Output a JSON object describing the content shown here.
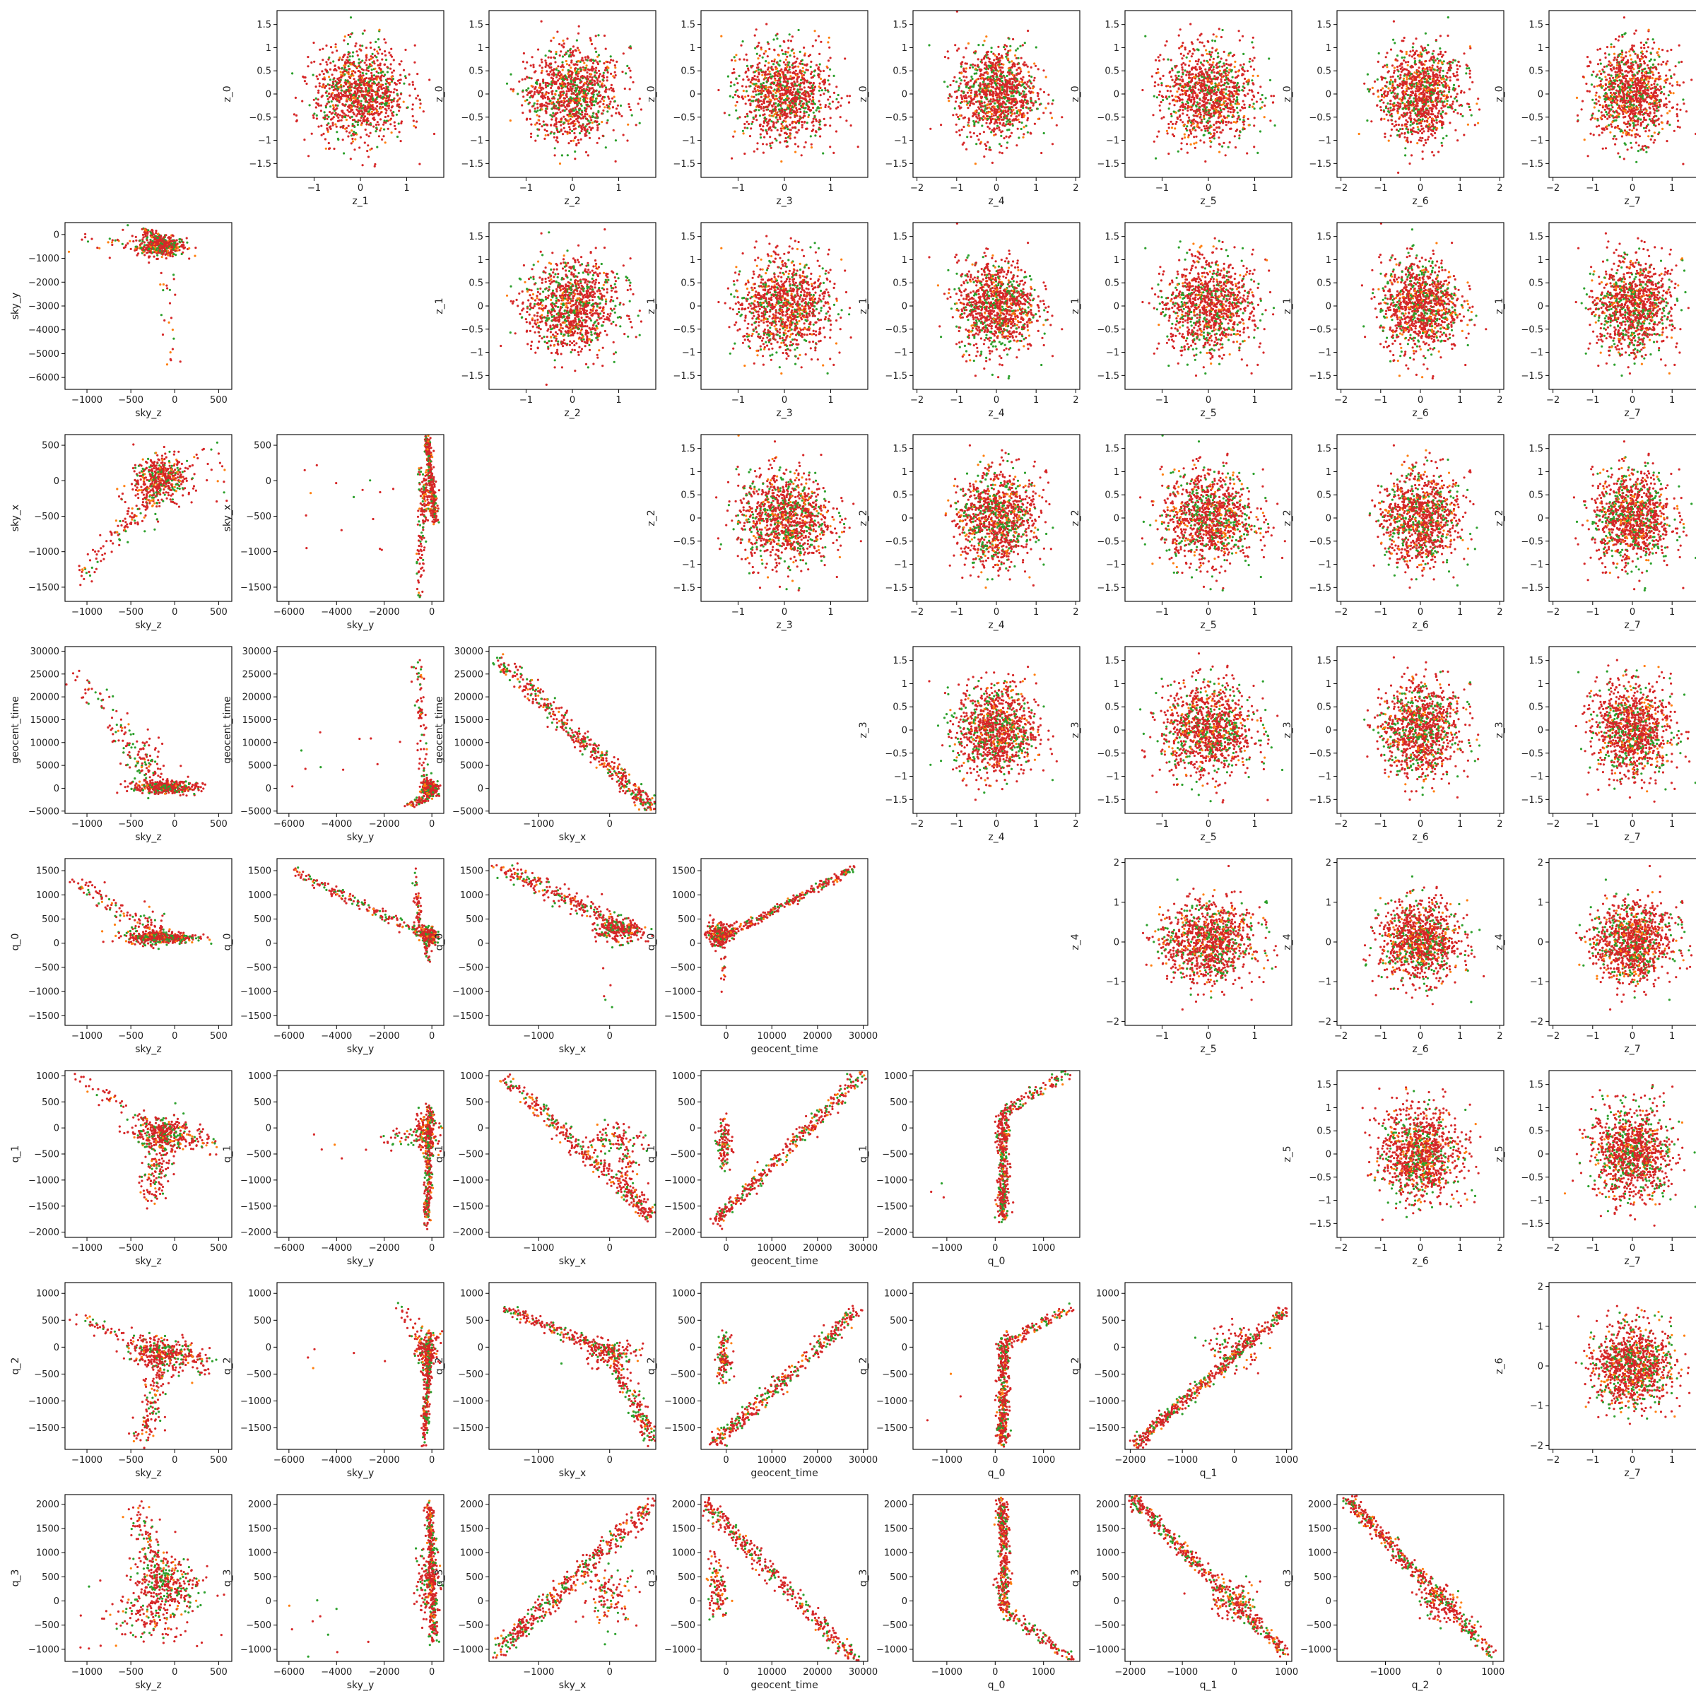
{
  "colors": {
    "primary": "#d62728",
    "secondary": "#2ca02c",
    "tertiary": "#ff7f0e"
  },
  "chart_data": {
    "type": "scatter",
    "grid": false,
    "lower_variables": [
      "sky_z",
      "sky_y",
      "sky_x",
      "geocent_time",
      "q_0",
      "q_1",
      "q_2",
      "q_3"
    ],
    "upper_variables": [
      "z_0",
      "z_1",
      "z_2",
      "z_3",
      "z_4",
      "z_5",
      "z_6",
      "z_7"
    ],
    "ranges": {
      "sky_z": [
        -1250,
        650
      ],
      "sky_y": [
        -6500,
        500
      ],
      "sky_x": [
        -1700,
        650
      ],
      "geocent_time": [
        -5500,
        31000
      ],
      "q_0": [
        -1700,
        1750
      ],
      "q_1": [
        -2100,
        1100
      ],
      "q_2": [
        -1900,
        1200
      ],
      "q_3": [
        -1250,
        2200
      ],
      "z_row": [
        -1.8,
        1.8
      ],
      "z_col": [
        -1.8,
        1.8
      ],
      "z_wide": [
        -2.1,
        2.1
      ]
    },
    "ticks": {
      "sky_z": [
        -1000,
        -500,
        0,
        500
      ],
      "sky_y": [
        -6000,
        -4000,
        -2000,
        0
      ],
      "sky_y_row": [
        -6000,
        -5000,
        -4000,
        -3000,
        -2000,
        -1000,
        0
      ],
      "sky_x": [
        -1000,
        0
      ],
      "sky_x_row": [
        -1500,
        -1000,
        -500,
        0,
        500
      ],
      "geocent_time": [
        0,
        10000,
        20000,
        30000
      ],
      "geocent_time_row": [
        -5000,
        0,
        5000,
        10000,
        15000,
        20000,
        25000,
        30000
      ],
      "q_0": [
        -1000,
        0,
        1000
      ],
      "q_0_row": [
        -1500,
        -1000,
        -500,
        0,
        500,
        1000,
        1500
      ],
      "q_1": [
        -2000,
        -1000,
        0,
        1000
      ],
      "q_1_row": [
        -2000,
        -1500,
        -1000,
        -500,
        0,
        500,
        1000
      ],
      "q_2": [
        -1000,
        0,
        1000
      ],
      "q_2_row": [
        -1500,
        -1000,
        -500,
        0,
        500,
        1000
      ],
      "q_3_row": [
        -1000,
        -500,
        0,
        500,
        1000,
        1500,
        2000
      ],
      "z_row": [
        -1.5,
        -1.0,
        -0.5,
        0.0,
        0.5,
        1.0,
        1.5
      ],
      "z_row_wide": [
        -2,
        -1,
        0,
        1,
        2
      ],
      "z_col": [
        -1,
        0,
        1
      ],
      "z_col_wide": [
        -2,
        -1,
        0,
        1,
        2
      ]
    },
    "lower_panels": [
      {
        "row": 1,
        "col": 0,
        "x": "sky_z",
        "y": "sky_y",
        "shape": "sky_z_vs_sky_y"
      },
      {
        "row": 2,
        "col": 0,
        "x": "sky_z",
        "y": "sky_x",
        "shape": "sky_z_vs_sky_x"
      },
      {
        "row": 2,
        "col": 1,
        "x": "sky_y",
        "y": "sky_x",
        "shape": "sky_y_vs_sky_x"
      },
      {
        "row": 3,
        "col": 0,
        "x": "sky_z",
        "y": "geocent_time",
        "shape": "sky_z_vs_time"
      },
      {
        "row": 3,
        "col": 1,
        "x": "sky_y",
        "y": "geocent_time",
        "shape": "sky_y_vs_time"
      },
      {
        "row": 3,
        "col": 2,
        "x": "sky_x",
        "y": "geocent_time",
        "shape": "sky_x_vs_time"
      },
      {
        "row": 4,
        "col": 0,
        "x": "sky_z",
        "y": "q_0",
        "shape": "sky_z_vs_q0"
      },
      {
        "row": 4,
        "col": 1,
        "x": "sky_y",
        "y": "q_0",
        "shape": "sky_y_vs_q0"
      },
      {
        "row": 4,
        "col": 2,
        "x": "sky_x",
        "y": "q_0",
        "shape": "sky_x_vs_q0"
      },
      {
        "row": 4,
        "col": 3,
        "x": "geocent_time",
        "y": "q_0",
        "shape": "time_vs_q0"
      },
      {
        "row": 5,
        "col": 0,
        "x": "sky_z",
        "y": "q_1",
        "shape": "sky_z_vs_q1"
      },
      {
        "row": 5,
        "col": 1,
        "x": "sky_y",
        "y": "q_1",
        "shape": "sky_y_vs_q1"
      },
      {
        "row": 5,
        "col": 2,
        "x": "sky_x",
        "y": "q_1",
        "shape": "sky_x_vs_q1"
      },
      {
        "row": 5,
        "col": 3,
        "x": "geocent_time",
        "y": "q_1",
        "shape": "time_vs_q1"
      },
      {
        "row": 5,
        "col": 4,
        "x": "q_0",
        "y": "q_1",
        "shape": "q0_vs_q1"
      },
      {
        "row": 6,
        "col": 0,
        "x": "sky_z",
        "y": "q_2",
        "shape": "sky_z_vs_q2"
      },
      {
        "row": 6,
        "col": 1,
        "x": "sky_y",
        "y": "q_2",
        "shape": "sky_y_vs_q2"
      },
      {
        "row": 6,
        "col": 2,
        "x": "sky_x",
        "y": "q_2",
        "shape": "sky_x_vs_q2"
      },
      {
        "row": 6,
        "col": 3,
        "x": "geocent_time",
        "y": "q_2",
        "shape": "time_vs_q2"
      },
      {
        "row": 6,
        "col": 4,
        "x": "q_0",
        "y": "q_2",
        "shape": "q0_vs_q2"
      },
      {
        "row": 6,
        "col": 5,
        "x": "q_1",
        "y": "q_2",
        "shape": "q1_vs_q2"
      },
      {
        "row": 7,
        "col": 0,
        "x": "sky_z",
        "y": "q_3",
        "shape": "sky_z_vs_q3"
      },
      {
        "row": 7,
        "col": 1,
        "x": "sky_y",
        "y": "q_3",
        "shape": "sky_y_vs_q3"
      },
      {
        "row": 7,
        "col": 2,
        "x": "sky_x",
        "y": "q_3",
        "shape": "sky_x_vs_q3"
      },
      {
        "row": 7,
        "col": 3,
        "x": "geocent_time",
        "y": "q_3",
        "shape": "time_vs_q3"
      },
      {
        "row": 7,
        "col": 4,
        "x": "q_0",
        "y": "q_3",
        "shape": "q0_vs_q3"
      },
      {
        "row": 7,
        "col": 5,
        "x": "q_1",
        "y": "q_3",
        "shape": "q1_vs_q3"
      },
      {
        "row": 7,
        "col": 6,
        "x": "q_2",
        "y": "q_3",
        "shape": "q2_vs_q3"
      }
    ],
    "upper_panels_note": "Upper triangle: row i, column j>i plots z_j (x) against z_i (y); all are isotropic Gaussian clouds centred at 0 with sd about 0.5."
  }
}
